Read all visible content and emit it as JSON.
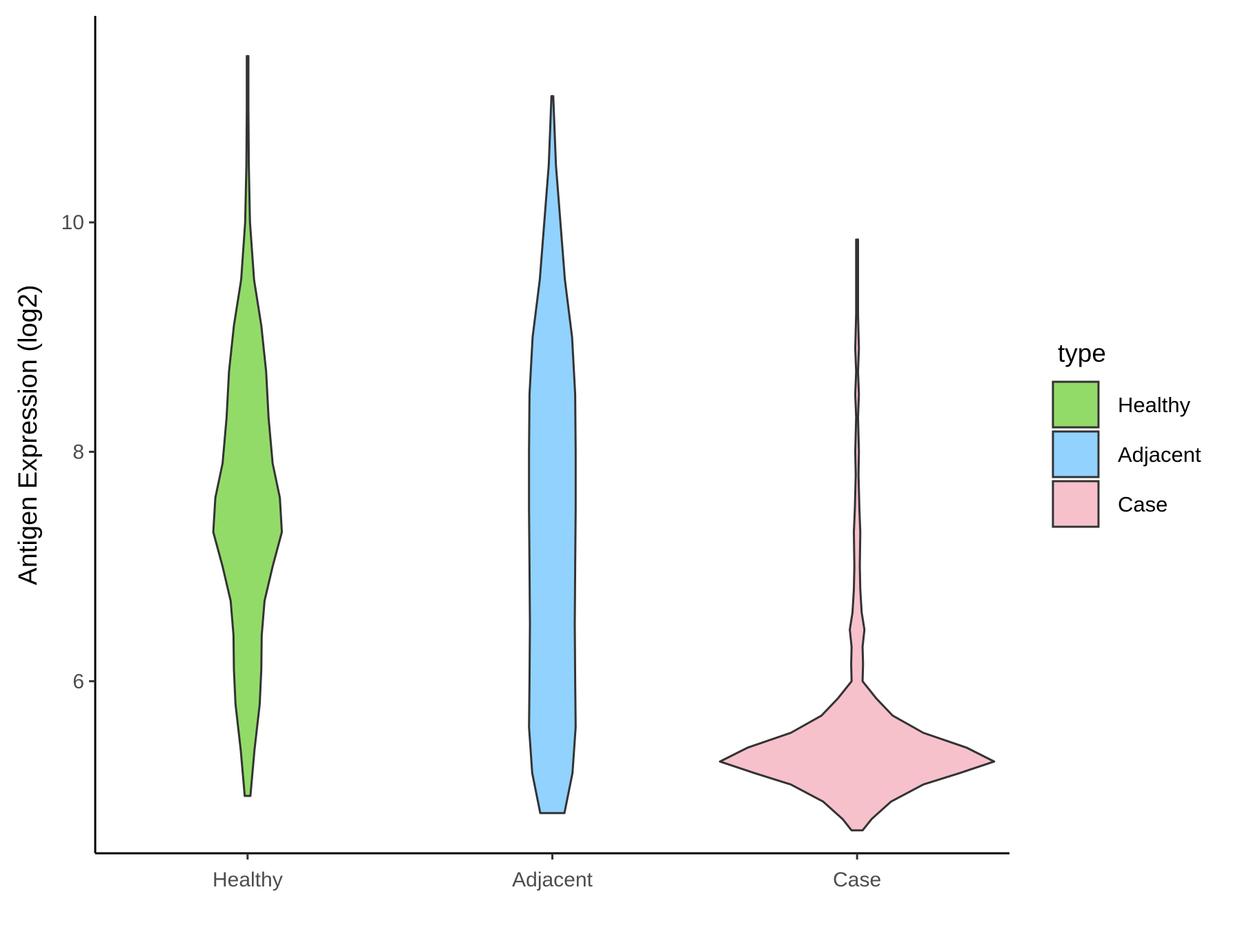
{
  "chart_data": {
    "type": "violin",
    "title": "",
    "xlabel": "",
    "ylabel": "Antigen Expression (log2)",
    "ylim": [
      4.5,
      11.8
    ],
    "yticks": [
      6,
      8,
      10
    ],
    "grid": false,
    "legend": {
      "title": "type",
      "placement": "right"
    },
    "categories": [
      "Healthy",
      "Adjacent",
      "Case"
    ],
    "series": [
      {
        "name": "Healthy",
        "color": "#93DB69",
        "profile": [
          [
            5.0,
            0.07
          ],
          [
            5.4,
            0.17
          ],
          [
            5.8,
            0.3
          ],
          [
            6.1,
            0.34
          ],
          [
            6.4,
            0.35
          ],
          [
            6.7,
            0.42
          ],
          [
            7.0,
            0.62
          ],
          [
            7.3,
            0.85
          ],
          [
            7.6,
            0.8
          ],
          [
            7.9,
            0.62
          ],
          [
            8.3,
            0.52
          ],
          [
            8.7,
            0.46
          ],
          [
            9.1,
            0.34
          ],
          [
            9.5,
            0.16
          ],
          [
            10.0,
            0.06
          ],
          [
            10.5,
            0.03
          ],
          [
            11.0,
            0.02
          ],
          [
            11.45,
            0.02
          ]
        ]
      },
      {
        "name": "Adjacent",
        "color": "#92D2FE",
        "profile": [
          [
            4.85,
            0.27
          ],
          [
            5.2,
            0.45
          ],
          [
            5.6,
            0.52
          ],
          [
            6.0,
            0.51
          ],
          [
            6.5,
            0.5
          ],
          [
            7.0,
            0.51
          ],
          [
            7.5,
            0.52
          ],
          [
            8.0,
            0.52
          ],
          [
            8.5,
            0.51
          ],
          [
            9.0,
            0.44
          ],
          [
            9.5,
            0.28
          ],
          [
            10.0,
            0.18
          ],
          [
            10.5,
            0.08
          ],
          [
            11.1,
            0.02
          ]
        ]
      },
      {
        "name": "Case",
        "color": "#F7C1CC",
        "profile": [
          [
            4.7,
            0.12
          ],
          [
            4.8,
            0.32
          ],
          [
            4.95,
            0.74
          ],
          [
            5.1,
            1.45
          ],
          [
            5.2,
            2.25
          ],
          [
            5.3,
            3.0
          ],
          [
            5.42,
            2.4
          ],
          [
            5.55,
            1.45
          ],
          [
            5.7,
            0.78
          ],
          [
            5.85,
            0.42
          ],
          [
            6.0,
            0.12
          ],
          [
            6.15,
            0.13
          ],
          [
            6.3,
            0.12
          ],
          [
            6.45,
            0.16
          ],
          [
            6.6,
            0.1
          ],
          [
            6.8,
            0.07
          ],
          [
            7.0,
            0.06
          ],
          [
            7.3,
            0.07
          ],
          [
            7.5,
            0.05
          ],
          [
            7.8,
            0.03
          ],
          [
            8.0,
            0.04
          ],
          [
            8.3,
            0.02
          ],
          [
            8.5,
            0.04
          ],
          [
            8.7,
            0.02
          ],
          [
            8.9,
            0.04
          ],
          [
            9.2,
            0.02
          ],
          [
            9.5,
            0.02
          ],
          [
            9.85,
            0.02
          ]
        ]
      }
    ]
  }
}
